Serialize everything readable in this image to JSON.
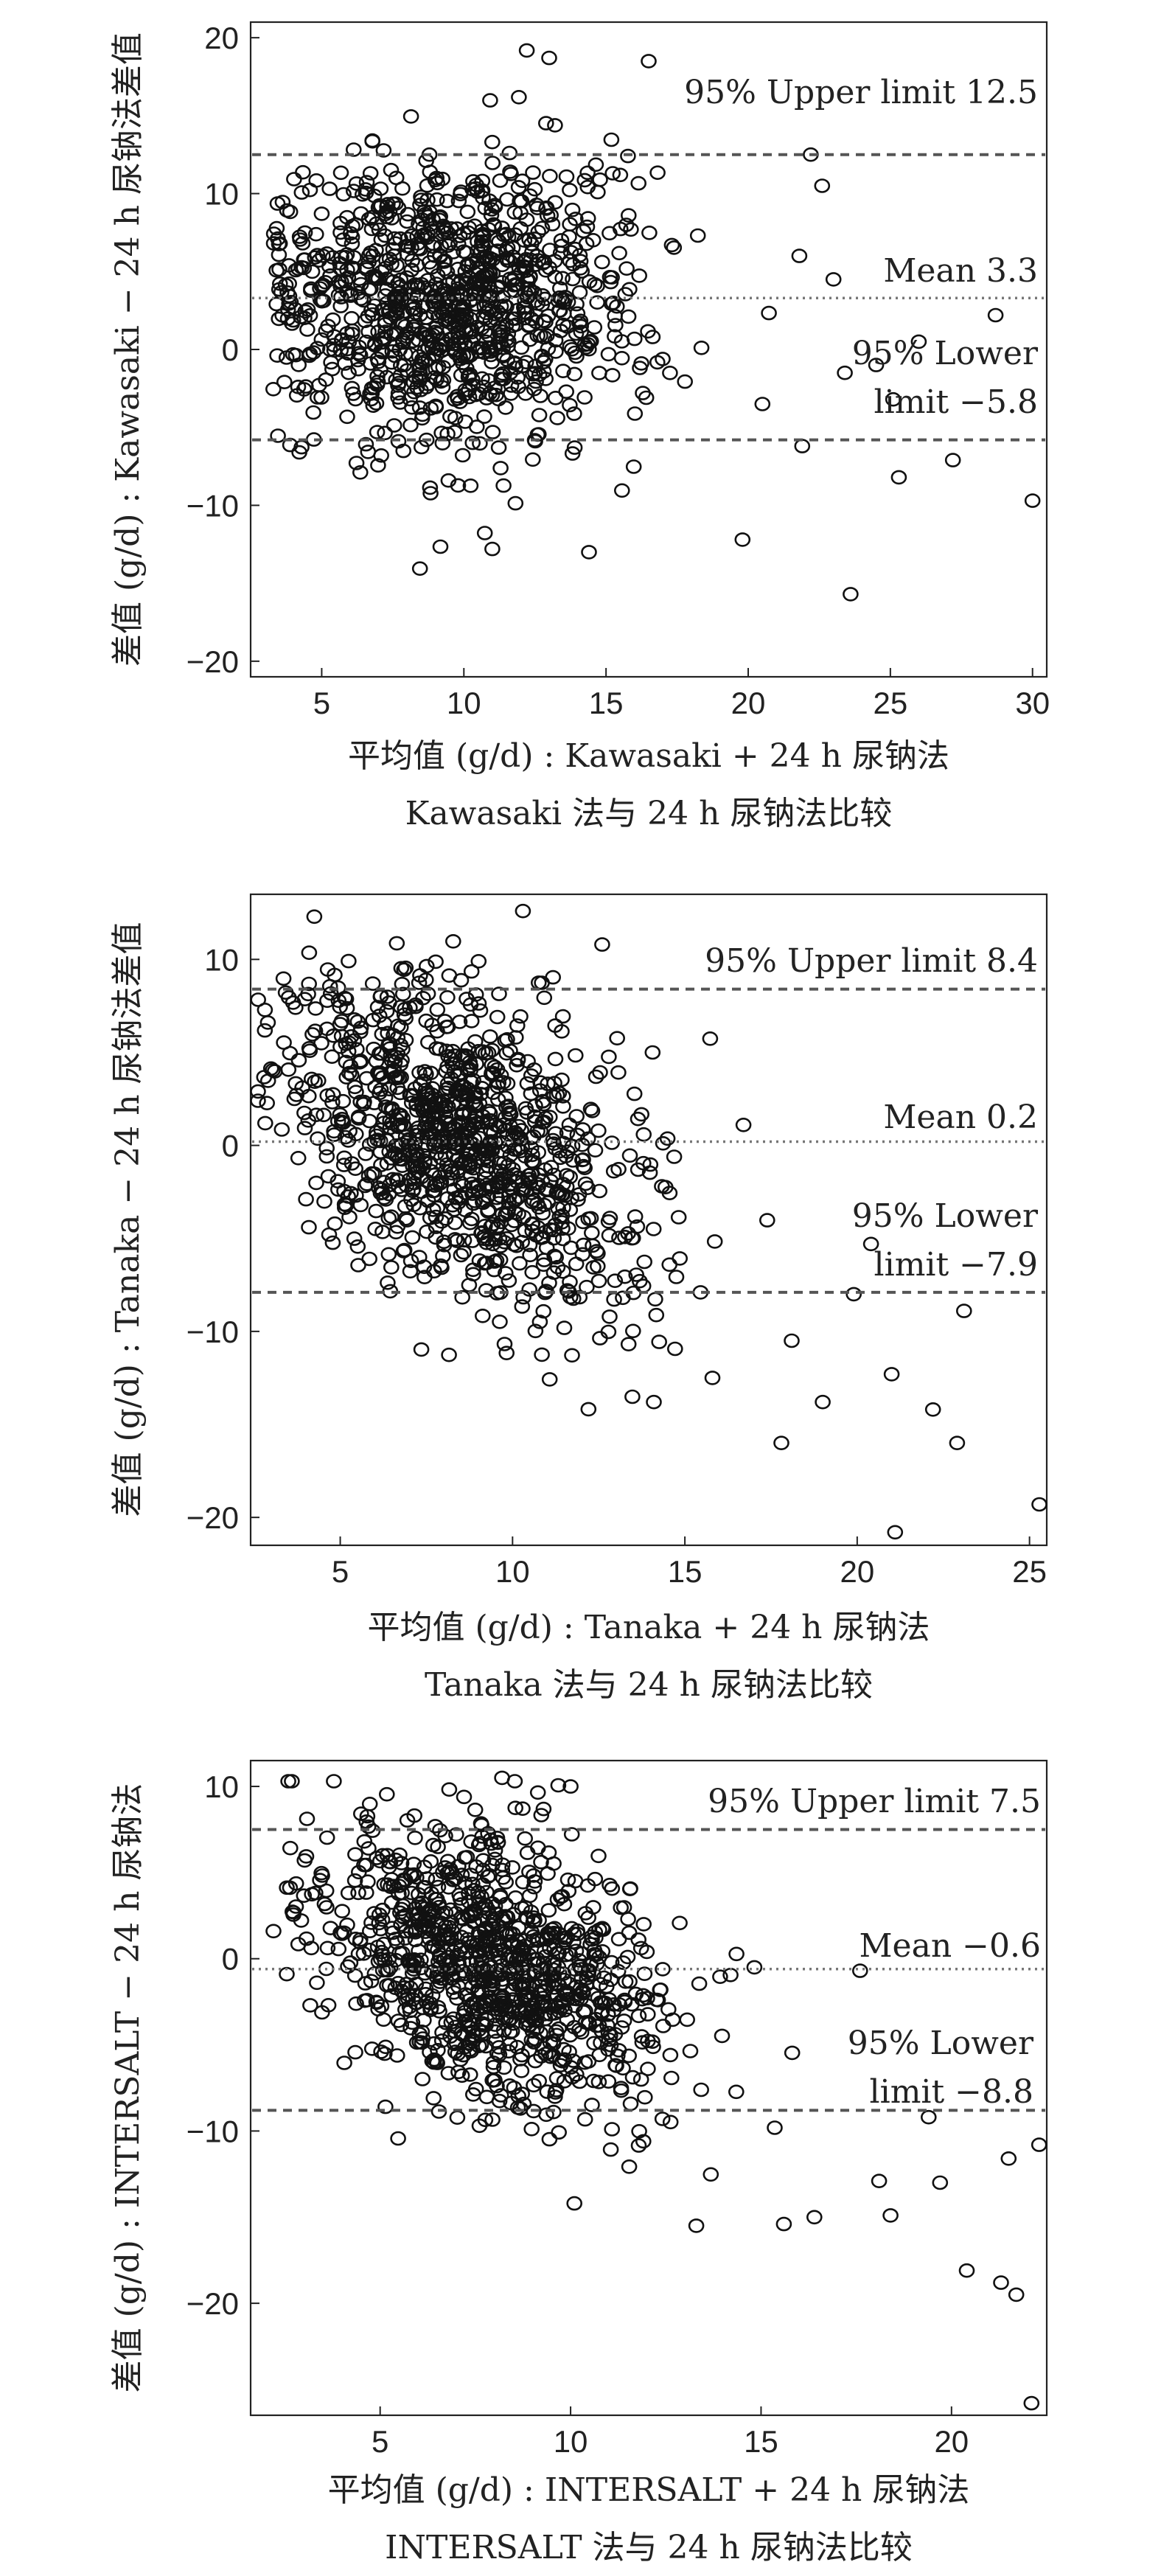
{
  "chart_data": [
    {
      "type": "scatter",
      "xlabel": "平均值 (g/d) : Kawasaki + 24 h 尿钠法",
      "ylabel": "差值 (g/d) : Kawasaki − 24 h 尿钠法差值",
      "caption": "Kawasaki 法与 24 h 尿钠法比较",
      "xlim": [
        2.5,
        30.5
      ],
      "ylim": [
        -21,
        21
      ],
      "xticks": [
        5,
        10,
        15,
        20,
        25,
        30
      ],
      "yticks": [
        -20,
        -10,
        0,
        10,
        20
      ],
      "lines": {
        "upper": 12.5,
        "mean": 3.3,
        "lower": -5.8
      },
      "annotations": {
        "upper": "95% Upper limit 12.5",
        "mean": "Mean 3.3",
        "lower_1": "95% Lower",
        "lower_2": "limit −5.8"
      },
      "cloud": {
        "n": 1050,
        "x_center": 9.5,
        "x_spread": 3.3,
        "x_min": 3.2,
        "x_max": 22,
        "y_mean": 3.3,
        "y_sd": 4.6,
        "slope": 0
      },
      "outliers": [
        [
          23.6,
          -15.7
        ],
        [
          30,
          -9.7
        ],
        [
          25.3,
          -8.2
        ],
        [
          27.2,
          -7.1
        ],
        [
          28.7,
          2.2
        ],
        [
          26,
          0.5
        ],
        [
          25.1,
          -3.2
        ],
        [
          23.4,
          -1.5
        ],
        [
          22.6,
          10.5
        ],
        [
          22.2,
          12.5
        ],
        [
          21.8,
          6
        ],
        [
          23,
          4.5
        ],
        [
          24.5,
          -1
        ],
        [
          20.5,
          -3.5
        ],
        [
          16.5,
          18.5
        ],
        [
          13,
          18.7
        ],
        [
          19.8,
          -12.2
        ],
        [
          14.4,
          -13
        ],
        [
          11,
          -12.8
        ],
        [
          21.9,
          -6.2
        ]
      ]
    },
    {
      "type": "scatter",
      "xlabel": "平均值 (g/d) : Tanaka + 24 h 尿钠法",
      "ylabel": "差值 (g/d) : Tanaka − 24 h 尿钠法差值",
      "caption": "Tanaka 法与 24 h 尿钠法比较",
      "xlim": [
        2.4,
        25.5
      ],
      "ylim": [
        -21.5,
        13.5
      ],
      "xticks": [
        5,
        10,
        15,
        20,
        25
      ],
      "yticks": [
        -20,
        -10,
        0,
        10
      ],
      "lines": {
        "upper": 8.4,
        "mean": 0.2,
        "lower": -7.9
      },
      "annotations": {
        "upper": "95% Upper limit 8.4",
        "mean": "Mean 0.2",
        "lower_1": "95% Lower",
        "lower_2": "limit −7.9"
      },
      "cloud": {
        "n": 1050,
        "x_center": 8.5,
        "x_spread": 2.7,
        "x_min": 2.6,
        "x_max": 19,
        "y_mean": 0.2,
        "y_sd": 3.8,
        "slope": -0.75
      },
      "outliers": [
        [
          25.3,
          -19.3
        ],
        [
          21.1,
          -20.8
        ],
        [
          22.9,
          -16
        ],
        [
          22.2,
          -14.2
        ],
        [
          21,
          -12.3
        ],
        [
          17.8,
          -16
        ],
        [
          19,
          -13.8
        ],
        [
          23.1,
          -8.9
        ],
        [
          20.4,
          -5.3
        ],
        [
          16.7,
          1.1
        ],
        [
          10.3,
          12.6
        ],
        [
          12.6,
          10.8
        ],
        [
          2.6,
          2.9
        ],
        [
          2.6,
          2.4
        ],
        [
          14.1,
          -13.8
        ],
        [
          15.8,
          -12.5
        ],
        [
          19.9,
          -8
        ],
        [
          18.1,
          -10.5
        ]
      ]
    },
    {
      "type": "scatter",
      "xlabel": "平均值 (g/d) : INTERSALT + 24 h 尿钠法",
      "ylabel": "差值 (g/d) : INTERSALT − 24 h 尿钠法",
      "caption": "INTERSALT 法与 24 h 尿钠法比较",
      "xlim": [
        1.6,
        22.5
      ],
      "ylim": [
        -26.5,
        11.5
      ],
      "xticks": [
        5,
        10,
        15,
        20
      ],
      "yticks": [
        -20,
        -10,
        0,
        10
      ],
      "lines": {
        "upper": 7.5,
        "mean": -0.6,
        "lower": -8.8
      },
      "annotations": {
        "upper": "95% Upper limit 7.5",
        "mean": "Mean −0.6",
        "lower_1": "95% Lower",
        "lower_2": "limit −8.8"
      },
      "cloud": {
        "n": 1050,
        "x_center": 8,
        "x_spread": 2.4,
        "x_min": 2.5,
        "x_max": 18,
        "y_mean": -0.6,
        "y_sd": 3.8,
        "slope": -0.8
      },
      "outliers": [
        [
          22.1,
          -25.8
        ],
        [
          21.3,
          -18.8
        ],
        [
          21.7,
          -19.5
        ],
        [
          20.4,
          -18.1
        ],
        [
          22.3,
          -10.8
        ],
        [
          21.5,
          -11.6
        ],
        [
          19.7,
          -13
        ],
        [
          18.4,
          -14.9
        ],
        [
          16.4,
          -15
        ],
        [
          15.6,
          -15.4
        ],
        [
          13.3,
          -15.5
        ],
        [
          10.1,
          -14.2
        ],
        [
          8.2,
          10.5
        ],
        [
          10,
          10
        ],
        [
          2.2,
          1.6
        ],
        [
          18.1,
          -12.9
        ],
        [
          17.6,
          -0.7
        ],
        [
          19.4,
          -9.2
        ]
      ]
    }
  ]
}
